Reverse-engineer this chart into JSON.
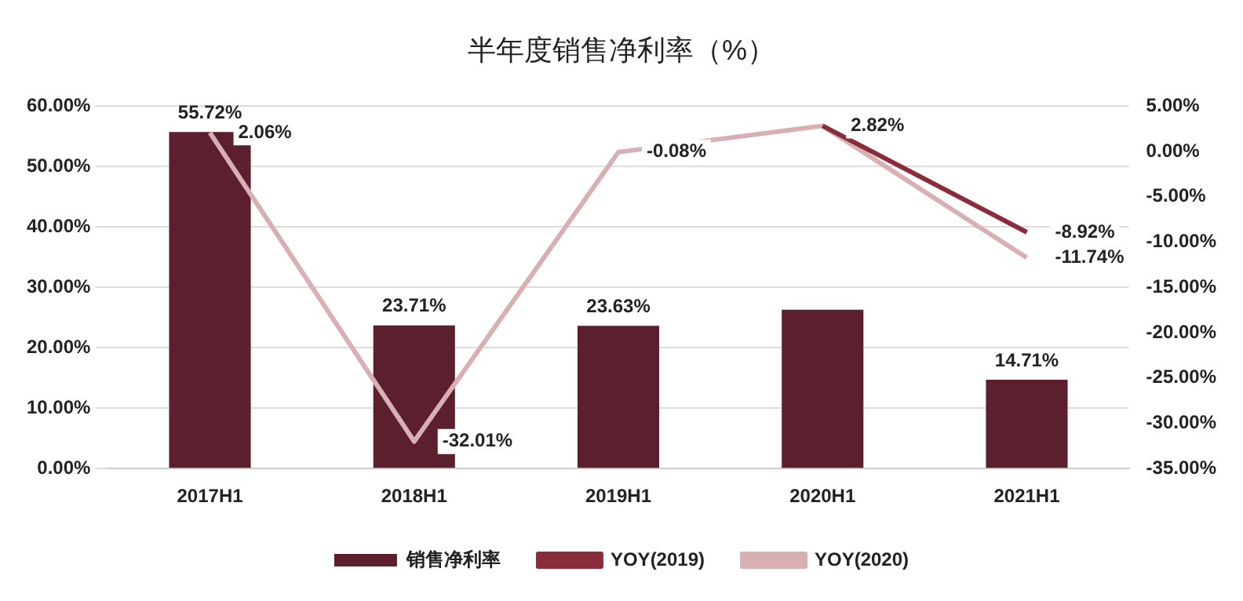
{
  "chart_data": {
    "type": "bar",
    "title": "半年度销售净利率（%）",
    "categories": [
      "2017H1",
      "2018H1",
      "2019H1",
      "2020H1",
      "2021H1"
    ],
    "series": [
      {
        "name": "销售净利率",
        "color": "#5b1f2e",
        "values": [
          55.72,
          23.71,
          23.63,
          26.3,
          14.71
        ],
        "value_labels": [
          "55.72%",
          "23.71%",
          "23.63%",
          null,
          "14.71%"
        ]
      },
      {
        "name": "YOY(2019)",
        "type": "line",
        "axis": "y2",
        "color": "#8b2c3a",
        "values": [
          null,
          null,
          null,
          2.82,
          -8.92
        ],
        "value_labels": [
          null,
          null,
          null,
          null,
          "-8.92%"
        ]
      },
      {
        "name": "YOY(2020)",
        "type": "line",
        "axis": "y2",
        "color": "#d8b0b4",
        "values": [
          2.06,
          -32.01,
          -0.08,
          2.82,
          -11.74
        ],
        "value_labels": [
          "2.06%",
          "-32.01%",
          "-0.08%",
          "2.82%",
          "-11.74%"
        ]
      }
    ],
    "ylim": [
      0,
      60
    ],
    "yticks": [
      {
        "value": 0,
        "label": "0.00%"
      },
      {
        "value": 10,
        "label": "10.00%"
      },
      {
        "value": 20,
        "label": "20.00%"
      },
      {
        "value": 30,
        "label": "30.00%"
      },
      {
        "value": 40,
        "label": "40.00%"
      },
      {
        "value": 50,
        "label": "50.00%"
      },
      {
        "value": 60,
        "label": "60.00%"
      }
    ],
    "y2lim": [
      -35,
      5
    ],
    "y2ticks": [
      {
        "value": 5,
        "label": "5.00%"
      },
      {
        "value": 0,
        "label": "0.00%"
      },
      {
        "value": -5,
        "label": "-5.00%"
      },
      {
        "value": -10,
        "label": "-10.00%"
      },
      {
        "value": -15,
        "label": "-15.00%"
      },
      {
        "value": -20,
        "label": "-20.00%"
      },
      {
        "value": -25,
        "label": "-25.00%"
      },
      {
        "value": -30,
        "label": "-30.00%"
      },
      {
        "value": -35,
        "label": "-35.00%"
      }
    ],
    "grid": "y",
    "legend": "bottom"
  }
}
